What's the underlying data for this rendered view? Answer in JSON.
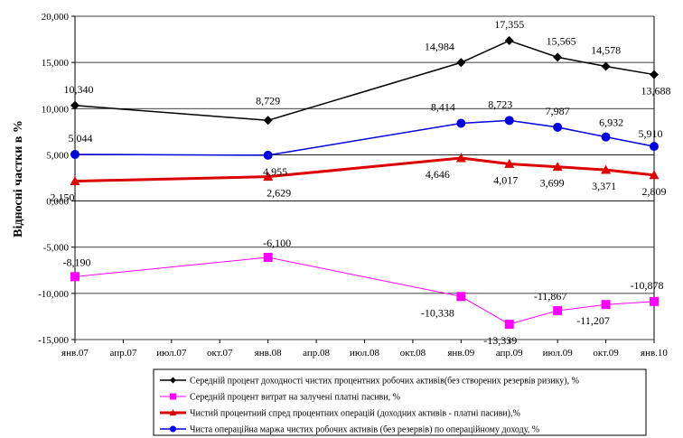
{
  "chart_data": {
    "type": "line",
    "xlabel": "",
    "ylabel": "Відносні частки в %",
    "ylim": [
      -15000,
      20000
    ],
    "y_ticks": [
      "20,000",
      "15,000",
      "10,000",
      "5,000",
      "0,000",
      "-5,000",
      "-10,000",
      "-15,000"
    ],
    "y_tick_values": [
      20000,
      15000,
      10000,
      5000,
      0,
      -5000,
      -10000,
      -15000
    ],
    "x_ticks": [
      "янв.07",
      "апр.07",
      "июл.07",
      "окт.07",
      "янв.08",
      "апр.08",
      "июл.08",
      "окт.08",
      "янв.09",
      "апр.09",
      "июл.09",
      "окт.09",
      "янв.10"
    ],
    "x_tick_months": [
      0,
      3,
      6,
      9,
      12,
      15,
      18,
      21,
      24,
      27,
      30,
      33,
      36
    ],
    "grid": "horizontal",
    "legend_position": "bottom",
    "series": [
      {
        "name": "Середній процент доходності чистих процентних робочих активів(без створених резервів ризику), %",
        "color": "#000000",
        "marker": "diamond",
        "line_width": 1.5,
        "x": [
          0,
          12,
          24,
          27,
          30,
          33,
          36
        ],
        "values": [
          10340,
          8729,
          14984,
          17355,
          15565,
          14578,
          13688
        ],
        "labels": [
          "10,340",
          "8,729",
          "14,984",
          "17,355",
          "15,565",
          "14,578",
          "13,688"
        ]
      },
      {
        "name": "Середній процент витрат на залучені платні пасиви, %",
        "color": "#ff00ff",
        "marker": "square",
        "line_width": 1,
        "x": [
          0,
          12,
          24,
          27,
          30,
          33,
          36
        ],
        "values": [
          -8190,
          -6100,
          -10338,
          -13339,
          -11867,
          -11207,
          -10878
        ],
        "labels": [
          "-8,190",
          "-6,100",
          "-10,338",
          "-13,339",
          "-11,867",
          "-11,207",
          "-10,878"
        ]
      },
      {
        "name": "Чистий процентний спред процентних операцій (доходних активів - платні пасиви),%",
        "color": "#dd0000",
        "marker": "triangle",
        "line_width": 3,
        "x": [
          0,
          12,
          24,
          27,
          30,
          33,
          36
        ],
        "values": [
          2150,
          2629,
          4646,
          4017,
          3699,
          3371,
          2809
        ],
        "labels": [
          "2,150",
          "2,629",
          "4,646",
          "4,017",
          "3,699",
          "3,371",
          "2,809"
        ]
      },
      {
        "name": "Чиста операційна маржа чистих робочих активів (без резервів) по операційному доходу, %",
        "color": "#0000dd",
        "marker": "circle",
        "line_width": 1.5,
        "x": [
          0,
          12,
          24,
          27,
          30,
          33,
          36
        ],
        "values": [
          5044,
          4955,
          8414,
          8723,
          7987,
          6932,
          5910
        ],
        "labels": [
          "5,044",
          "4,955",
          "8,414",
          "8,723",
          "7,987",
          "6,932",
          "5,910"
        ]
      }
    ]
  }
}
